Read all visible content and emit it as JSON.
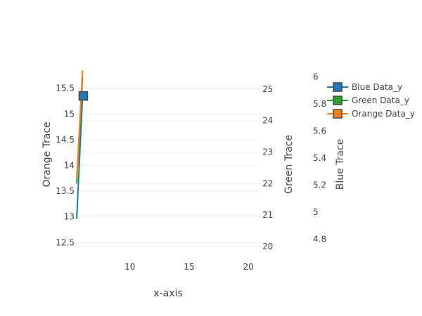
{
  "chart_data": {
    "type": "line",
    "title": "",
    "xlabel": "x-axis",
    "xlim": [
      5.5,
      21
    ],
    "x_ticks": [
      10,
      15,
      20
    ],
    "y_axes": [
      {
        "id": "orange",
        "label": "Orange Trace",
        "side": "left",
        "range": [
          12.3,
          15.85
        ],
        "ticks": [
          12.5,
          13,
          13.5,
          14,
          14.5,
          15,
          15.5
        ],
        "color": "#444444"
      },
      {
        "id": "green",
        "label": "Green Trace",
        "side": "right",
        "range": [
          19.8,
          25.6
        ],
        "ticks": [
          20,
          21,
          22,
          23,
          24,
          25
        ],
        "color": "#444444"
      },
      {
        "id": "blue",
        "label": "Blue Trace",
        "side": "right-free",
        "range": [
          4.7,
          6.05
        ],
        "ticks": [
          4.8,
          5,
          5.2,
          5.4,
          5.6,
          5.8,
          6
        ],
        "color": "#444444"
      }
    ],
    "series": [
      {
        "name": "Blue Data_y",
        "color": "#1f77b4",
        "axis": "blue",
        "x": [
          5.5,
          6
        ],
        "y": [
          4.95,
          5.86
        ],
        "marker": "square"
      },
      {
        "name": "Green Data_y",
        "color": "#2ca02c",
        "axis": "green",
        "x": [
          5.5,
          6
        ],
        "y": [
          22.0,
          25.4
        ],
        "marker": "square"
      },
      {
        "name": "Orange Data_y",
        "color": "#ff7f0e",
        "axis": "orange",
        "x": [
          5.5,
          6
        ],
        "y": [
          13.75,
          15.85
        ],
        "marker": "square"
      }
    ],
    "grid": true,
    "legend": "top-right"
  }
}
